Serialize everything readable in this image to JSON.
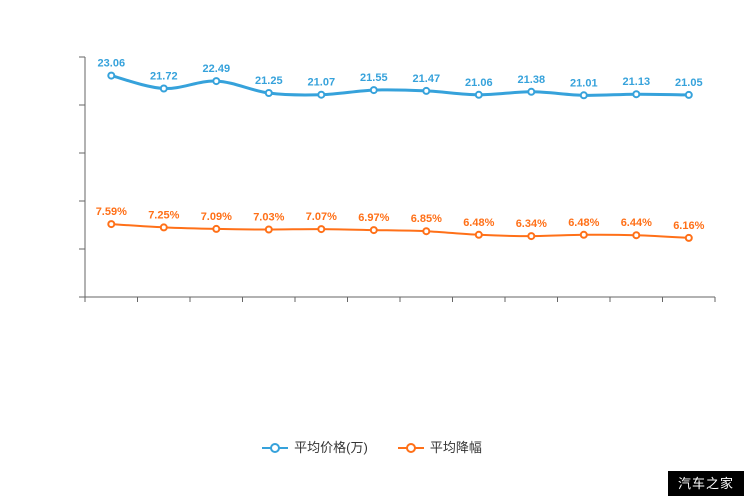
{
  "watermark": {
    "text": "汽车之家",
    "background": "#000000",
    "color": "#ffffff"
  },
  "chart_data": {
    "type": "line",
    "title": "",
    "xlabel": "",
    "ylabel": "",
    "categories": [
      "",
      "",
      "",
      "",
      "",
      "",
      "",
      "",
      "",
      "",
      "",
      ""
    ],
    "series": [
      {
        "name": "平均价格(万)",
        "color": "#36a2db",
        "suffix": "",
        "values": [
          23.06,
          21.72,
          22.49,
          21.25,
          21.07,
          21.55,
          21.47,
          21.06,
          21.38,
          21.01,
          21.13,
          21.05
        ]
      },
      {
        "name": "平均降幅",
        "color": "#ff7018",
        "suffix": "%",
        "values": [
          7.59,
          7.25,
          7.09,
          7.03,
          7.07,
          6.97,
          6.85,
          6.48,
          6.34,
          6.48,
          6.44,
          6.16
        ]
      }
    ],
    "ylim": [
      0,
      25
    ],
    "y_tick_count": 5,
    "grid": false,
    "axis_color": "#666666",
    "legend_position": "bottom",
    "x_tick_labels_visible": false,
    "y_tick_labels_visible": false,
    "data_labels_visible": true
  }
}
